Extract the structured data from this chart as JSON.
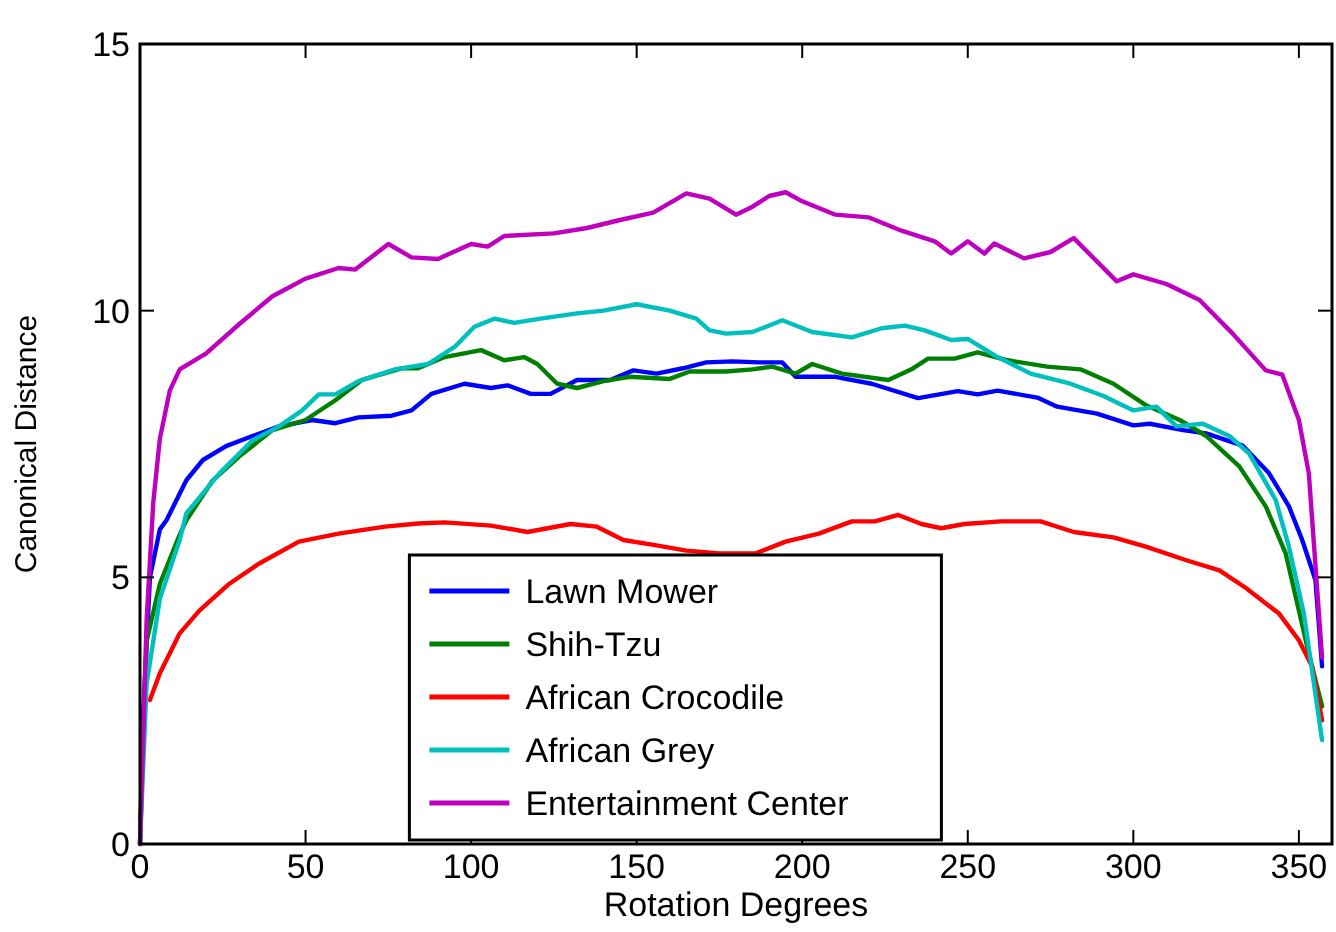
{
  "chart_data": {
    "type": "line",
    "xlabel": "Rotation Degrees",
    "ylabel": "Canonical Distance",
    "xlim": [
      0,
      360
    ],
    "ylim": [
      0,
      15
    ],
    "xticks": [
      0,
      50,
      100,
      150,
      200,
      250,
      300,
      350
    ],
    "yticks": [
      0,
      5,
      10,
      15
    ],
    "legend": "bottom",
    "line_style": "solid",
    "marker": "none",
    "grid": false,
    "series": [
      {
        "name": "Lawn Mower",
        "color": "#0000ff",
        "x": [
          0,
          1,
          3,
          6,
          8,
          14,
          19,
          26,
          34,
          42,
          52,
          59,
          66,
          76,
          82,
          88,
          98,
          106,
          111,
          118,
          124,
          132,
          142,
          149,
          156,
          164,
          171,
          179,
          187,
          194,
          198,
          210,
          221,
          235,
          247,
          253,
          259,
          271,
          277,
          289,
          300,
          305,
          315,
          322,
          333,
          341,
          347,
          351,
          355,
          357
        ],
        "values": [
          0,
          2.5,
          5.0,
          5.9,
          6.07,
          6.82,
          7.2,
          7.46,
          7.65,
          7.83,
          7.95,
          7.89,
          8.0,
          8.03,
          8.13,
          8.44,
          8.63,
          8.55,
          8.6,
          8.44,
          8.44,
          8.7,
          8.7,
          8.88,
          8.82,
          8.92,
          9.03,
          9.05,
          9.03,
          9.03,
          8.76,
          8.76,
          8.63,
          8.36,
          8.49,
          8.43,
          8.5,
          8.37,
          8.2,
          8.07,
          7.85,
          7.88,
          7.76,
          7.7,
          7.47,
          6.95,
          6.33,
          5.7,
          4.95,
          3.33
        ]
      },
      {
        "name": "Shih-Tzu",
        "color": "#008000",
        "x": [
          0,
          2,
          6,
          12,
          14,
          22,
          30,
          40,
          50,
          59,
          67,
          79,
          84,
          92,
          103,
          110,
          116,
          120,
          126,
          132,
          140,
          148,
          160,
          166,
          177,
          185,
          191,
          198,
          203,
          212,
          226,
          233,
          238,
          246,
          253,
          262,
          274,
          284,
          294,
          304,
          314,
          322,
          332,
          340,
          346,
          353,
          357
        ],
        "values": [
          0,
          3.8,
          4.88,
          5.8,
          6.07,
          6.82,
          7.27,
          7.76,
          7.95,
          8.32,
          8.7,
          8.92,
          8.92,
          9.13,
          9.26,
          9.07,
          9.13,
          9.0,
          8.63,
          8.55,
          8.68,
          8.76,
          8.72,
          8.86,
          8.86,
          8.9,
          8.95,
          8.82,
          9.0,
          8.82,
          8.7,
          8.9,
          9.1,
          9.1,
          9.22,
          9.07,
          8.95,
          8.9,
          8.63,
          8.22,
          7.95,
          7.65,
          7.08,
          6.33,
          5.45,
          3.57,
          2.58
        ]
      },
      {
        "name": "African Crocodile",
        "color": "#ff0000",
        "x": [
          3,
          6,
          12,
          18,
          27,
          36,
          48,
          60,
          74,
          84,
          92,
          106,
          117,
          130,
          138,
          146,
          156,
          165,
          175,
          186,
          195,
          205,
          215,
          222,
          229,
          236,
          242,
          249,
          260,
          272,
          282,
          294,
          304,
          316,
          326,
          334,
          344,
          350,
          354,
          357
        ],
        "values": [
          2.7,
          3.2,
          3.95,
          4.38,
          4.88,
          5.26,
          5.67,
          5.82,
          5.95,
          6.01,
          6.03,
          5.97,
          5.85,
          6.0,
          5.95,
          5.7,
          5.6,
          5.5,
          5.45,
          5.45,
          5.67,
          5.82,
          6.05,
          6.05,
          6.17,
          6.0,
          5.92,
          6.0,
          6.05,
          6.05,
          5.85,
          5.75,
          5.57,
          5.32,
          5.13,
          4.8,
          4.32,
          3.82,
          3.33,
          2.32
        ]
      },
      {
        "name": "African Grey",
        "color": "#00bfbf",
        "x": [
          0,
          2,
          6,
          12,
          14,
          24,
          34,
          42,
          49,
          54,
          59,
          66,
          77,
          87,
          95,
          101,
          107,
          113,
          121,
          132,
          140,
          150,
          160,
          168,
          172,
          177,
          185,
          194,
          203,
          215,
          224,
          231,
          237,
          245,
          250,
          259,
          269,
          281,
          291,
          300,
          307,
          313,
          321,
          329,
          335,
          343,
          347,
          351.5,
          357
        ],
        "values": [
          0,
          3.0,
          4.6,
          5.7,
          6.2,
          6.95,
          7.57,
          7.83,
          8.13,
          8.43,
          8.43,
          8.68,
          8.9,
          9.0,
          9.32,
          9.7,
          9.85,
          9.77,
          9.85,
          9.95,
          10.0,
          10.12,
          10.0,
          9.85,
          9.63,
          9.57,
          9.6,
          9.82,
          9.6,
          9.5,
          9.67,
          9.72,
          9.63,
          9.45,
          9.47,
          9.13,
          8.82,
          8.63,
          8.4,
          8.13,
          8.2,
          7.83,
          7.88,
          7.65,
          7.32,
          6.45,
          5.57,
          4.32,
          1.95
        ]
      },
      {
        "name": "Entertainment Center",
        "color": "#bf00bf",
        "x": [
          0,
          2,
          4,
          6,
          9,
          12,
          20,
          30,
          40,
          50,
          60,
          65,
          75,
          82,
          90,
          100,
          105,
          110,
          125,
          135,
          145,
          155,
          165,
          172,
          180,
          185,
          190,
          195,
          200,
          210,
          220,
          230,
          240,
          245,
          250,
          255,
          258,
          267,
          275,
          282,
          295,
          300,
          310,
          320,
          330,
          340,
          345,
          350,
          353,
          357
        ],
        "values": [
          0,
          4.2,
          6.4,
          7.6,
          8.5,
          8.9,
          9.2,
          9.75,
          10.27,
          10.6,
          10.8,
          10.77,
          11.25,
          11.0,
          10.97,
          11.25,
          11.2,
          11.4,
          11.45,
          11.55,
          11.7,
          11.84,
          12.2,
          12.1,
          11.8,
          11.95,
          12.15,
          12.22,
          12.05,
          11.8,
          11.75,
          11.5,
          11.3,
          11.07,
          11.3,
          11.07,
          11.26,
          10.98,
          11.1,
          11.36,
          10.55,
          10.68,
          10.5,
          10.2,
          9.57,
          8.88,
          8.8,
          7.95,
          6.95,
          3.5
        ]
      }
    ]
  }
}
